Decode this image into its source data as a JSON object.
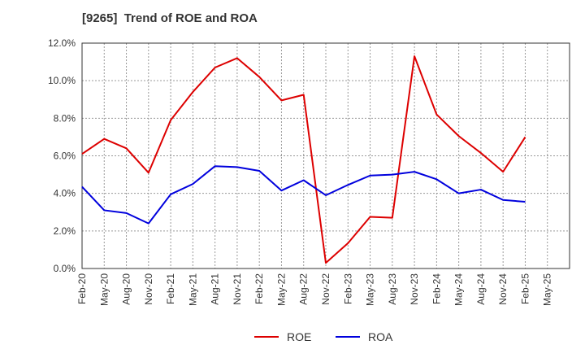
{
  "chart_data": {
    "type": "line",
    "title": "[9265]  Trend of ROE and ROA",
    "xlabel": "",
    "ylabel": "",
    "categories": [
      "Feb-20",
      "May-20",
      "Aug-20",
      "Nov-20",
      "Feb-21",
      "May-21",
      "Aug-21",
      "Nov-21",
      "Feb-22",
      "May-22",
      "Aug-22",
      "Nov-22",
      "Feb-23",
      "May-23",
      "Aug-23",
      "Nov-23",
      "Feb-24",
      "May-24",
      "Aug-24",
      "Nov-24",
      "Feb-25",
      "May-25"
    ],
    "ylim": [
      0,
      12
    ],
    "yticks": [
      "0.0%",
      "2.0%",
      "4.0%",
      "6.0%",
      "8.0%",
      "10.0%",
      "12.0%"
    ],
    "grid": true,
    "legend_position": "bottom",
    "series": [
      {
        "name": "ROE",
        "color": "#dd0000",
        "values": [
          6.1,
          6.9,
          6.4,
          5.1,
          7.9,
          9.4,
          10.7,
          11.2,
          10.2,
          8.95,
          9.25,
          0.3,
          1.35,
          2.75,
          2.7,
          11.3,
          8.2,
          7.05,
          6.15,
          5.15,
          7.0,
          null
        ]
      },
      {
        "name": "ROA",
        "color": "#0000dd",
        "values": [
          4.35,
          3.1,
          2.95,
          2.4,
          3.95,
          4.5,
          5.45,
          5.4,
          5.2,
          4.15,
          4.7,
          3.9,
          4.45,
          4.95,
          5.0,
          5.15,
          4.75,
          4.0,
          4.2,
          3.65,
          3.55,
          null
        ]
      }
    ]
  }
}
